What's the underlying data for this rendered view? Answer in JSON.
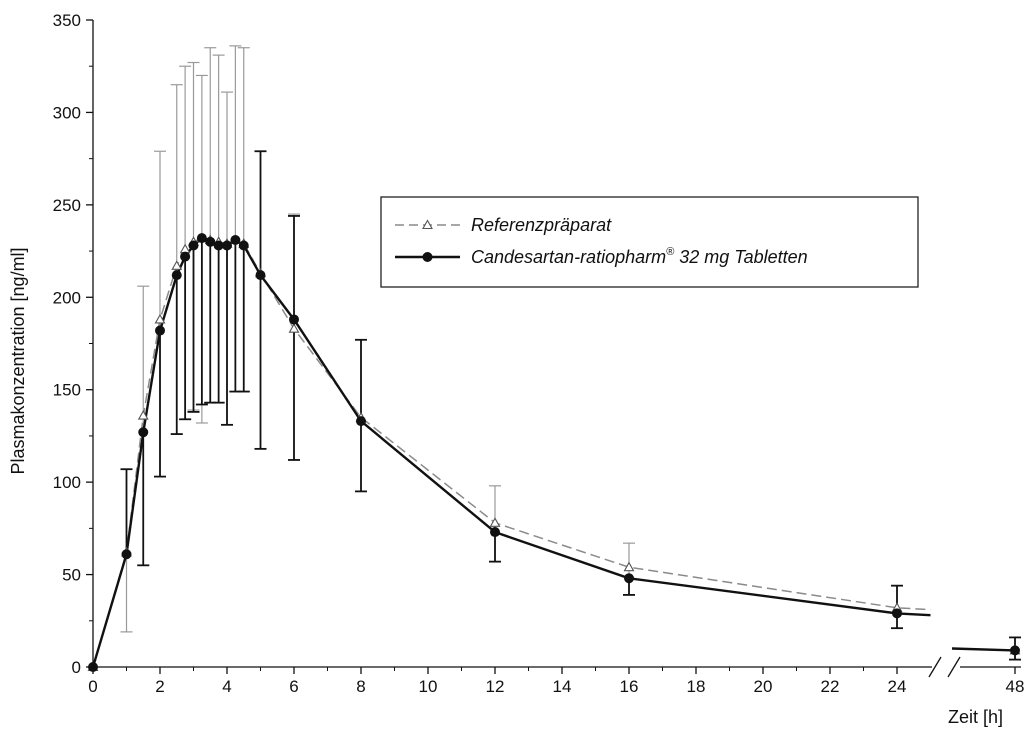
{
  "chart_data": {
    "type": "line",
    "title": "",
    "xlabel": "Zeit [h]",
    "ylabel": "Plasmakonzentration [ng/ml]",
    "ylim": [
      0,
      350
    ],
    "yticks": [
      "0",
      "50",
      "100",
      "150",
      "200",
      "250",
      "300",
      "350"
    ],
    "xticks": [
      "0",
      "2",
      "4",
      "6",
      "8",
      "10",
      "12",
      "14",
      "16",
      "18",
      "20",
      "22",
      "24",
      "48"
    ],
    "x_axis_break": {
      "from": 25,
      "to": 47
    },
    "grid": false,
    "legend_position": "upper-right",
    "legend": {
      "ref": "Referenzpräparat",
      "test": "Candesartan-ratiopharm",
      "test_sup": "®",
      "test_suffix": " 32 mg Tabletten"
    },
    "series": [
      {
        "id": "ref",
        "style": "dashed line, open triangle markers, light grey error bars",
        "color": "#8a8a8a",
        "x": [
          0,
          1,
          1.5,
          2,
          2.5,
          2.75,
          3,
          3.25,
          3.5,
          3.75,
          4,
          4.25,
          4.5,
          5,
          6,
          8,
          12,
          16,
          24,
          25,
          47,
          48
        ],
        "y": [
          0,
          62,
          136,
          188,
          217,
          226,
          230,
          232,
          231,
          230,
          229,
          231,
          229,
          213,
          183,
          135,
          78,
          54,
          32,
          31,
          10,
          9
        ],
        "upper": [
          null,
          null,
          206,
          279,
          315,
          325,
          327,
          320,
          335,
          331,
          311,
          336,
          335,
          279,
          245,
          177,
          98,
          67,
          44,
          null,
          null,
          16
        ],
        "lower": [
          null,
          19,
          55,
          103,
          126,
          134,
          139,
          132,
          143,
          143,
          131,
          149,
          149,
          118,
          112,
          95,
          57,
          39,
          21,
          null,
          null,
          4
        ]
      },
      {
        "id": "test",
        "style": "solid line, filled circle markers, dark error bars",
        "color": "#111111",
        "x": [
          0,
          1,
          1.5,
          2,
          2.5,
          2.75,
          3,
          3.25,
          3.5,
          3.75,
          4,
          4.25,
          4.5,
          5,
          6,
          8,
          12,
          16,
          24,
          25,
          47,
          48
        ],
        "y": [
          0,
          61,
          127,
          182,
          212,
          222,
          228,
          232,
          230,
          228,
          228,
          231,
          228,
          212,
          188,
          133,
          73,
          48,
          29,
          28,
          10,
          9
        ],
        "upper": [
          null,
          107,
          null,
          null,
          null,
          null,
          null,
          null,
          null,
          null,
          null,
          null,
          null,
          279,
          244,
          177,
          null,
          null,
          44,
          null,
          null,
          16
        ],
        "lower": [
          null,
          null,
          55,
          103,
          126,
          134,
          138,
          142,
          143,
          143,
          131,
          149,
          149,
          118,
          112,
          95,
          57,
          39,
          21,
          null,
          null,
          4
        ]
      }
    ]
  }
}
